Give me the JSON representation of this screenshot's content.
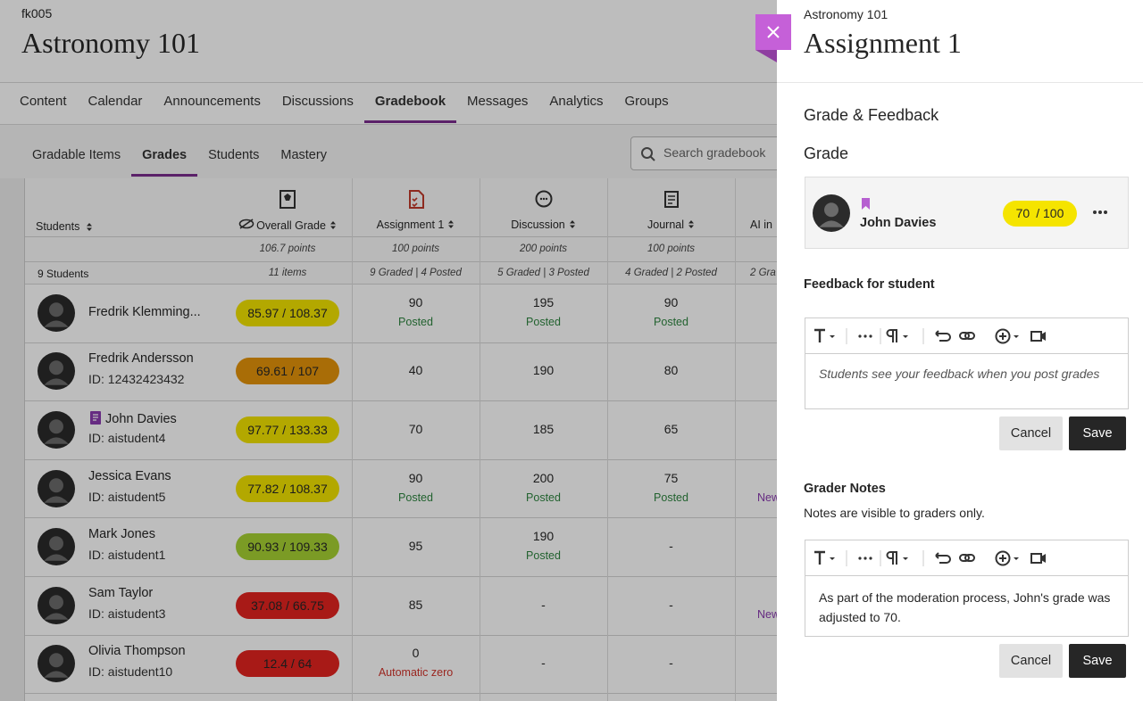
{
  "course": {
    "code": "fk005",
    "title": "Astronomy 101"
  },
  "nav": {
    "items": [
      "Content",
      "Calendar",
      "Announcements",
      "Discussions",
      "Gradebook",
      "Messages",
      "Analytics",
      "Groups"
    ],
    "active": 4
  },
  "subnav": {
    "items": [
      "Gradable Items",
      "Grades",
      "Students",
      "Mastery"
    ],
    "active": 1
  },
  "search": {
    "placeholder": "Search gradebook"
  },
  "gradebook": {
    "students_header": "Students",
    "students_summary": "9 Students",
    "columns": [
      {
        "label": "Overall Grade",
        "points": "106.7 points",
        "summary": "11 items"
      },
      {
        "label": "Assignment 1",
        "points": "100 points",
        "summary": "9 Graded | 4 Posted"
      },
      {
        "label": "Discussion",
        "points": "200 points",
        "summary": "5 Graded | 3 Posted"
      },
      {
        "label": "Journal",
        "points": "100 points",
        "summary": "4 Graded | 2 Posted"
      },
      {
        "label": "AI in",
        "summary": "2 Gra"
      }
    ],
    "rows": [
      {
        "name": "Fredrik Klemming...",
        "overall": "85.97 / 108.37",
        "pill": "yellow",
        "grades": [
          {
            "value": "90",
            "status": "Posted"
          },
          {
            "value": "195",
            "status": "Posted"
          },
          {
            "value": "90",
            "status": "Posted"
          }
        ]
      },
      {
        "name": "Fredrik Andersson",
        "id": "ID: 12432423432",
        "overall": "69.61 / 107",
        "pill": "orange",
        "grades": [
          {
            "value": "40"
          },
          {
            "value": "190"
          },
          {
            "value": "80"
          }
        ]
      },
      {
        "name": "John Davies",
        "flagged": true,
        "id": "ID: aistudent4",
        "overall": "97.77 / 133.33",
        "pill": "yellow",
        "grades": [
          {
            "value": "70"
          },
          {
            "value": "185"
          },
          {
            "value": "65"
          }
        ]
      },
      {
        "name": "Jessica Evans",
        "id": "ID: aistudent5",
        "overall": "77.82 / 108.37",
        "pill": "yellow",
        "grades": [
          {
            "value": "90",
            "status": "Posted"
          },
          {
            "value": "200",
            "status": "Posted"
          },
          {
            "value": "75",
            "status": "Posted"
          }
        ],
        "ai": "New"
      },
      {
        "name": "Mark Jones",
        "id": "ID: aistudent1",
        "overall": "90.93 / 109.33",
        "pill": "green",
        "grades": [
          {
            "value": "95"
          },
          {
            "value": "190",
            "status": "Posted"
          },
          {
            "value": "-"
          }
        ]
      },
      {
        "name": "Sam Taylor",
        "id": "ID: aistudent3",
        "overall": "37.08 / 66.75",
        "pill": "red",
        "grades": [
          {
            "value": "85"
          },
          {
            "value": "-"
          },
          {
            "value": "-"
          }
        ],
        "ai": "New"
      },
      {
        "name": "Olivia Thompson",
        "id": "ID: aistudent10",
        "overall": "12.4 / 64",
        "pill": "red",
        "grades": [
          {
            "value": "0",
            "status": "Automatic zero"
          },
          {
            "value": "-"
          },
          {
            "value": "-"
          }
        ]
      }
    ]
  },
  "panel": {
    "title": "Assignment 1",
    "section": "Grade & Feedback",
    "grade_heading": "Grade",
    "student": "John Davies",
    "score": "70",
    "max": "/ 100",
    "feedback_label": "Feedback for student",
    "feedback_placeholder": "Students see your feedback when you post grades",
    "cancel": "Cancel",
    "save": "Save",
    "notes_label": "Grader Notes",
    "notes_hint": "Notes are visible to graders only.",
    "notes_text": "As part of the moderation process, John's grade was adjusted to 70."
  }
}
